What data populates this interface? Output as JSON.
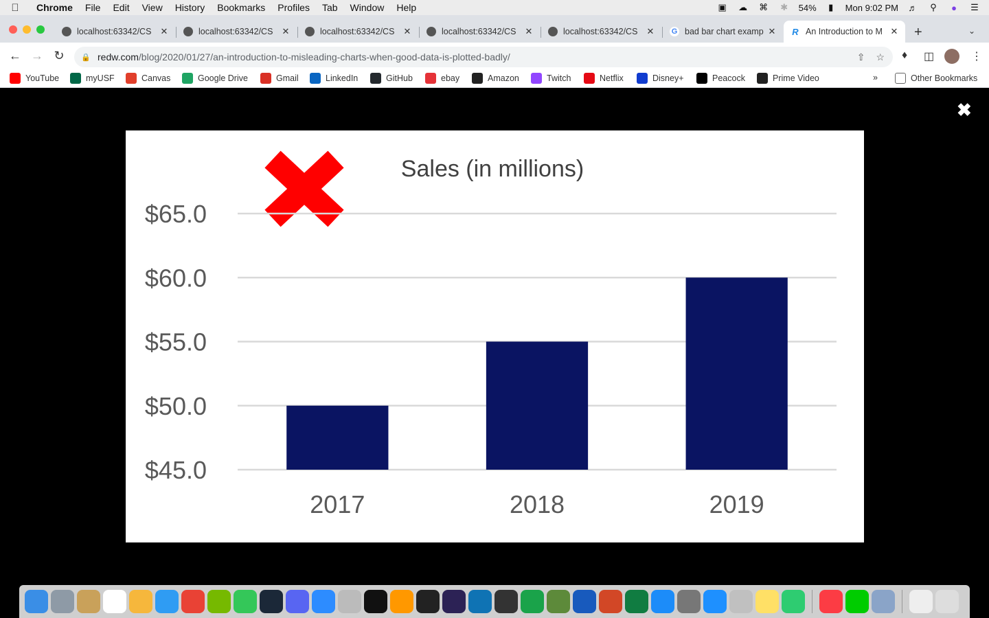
{
  "menubar": {
    "app": "Chrome",
    "items": [
      "File",
      "Edit",
      "View",
      "History",
      "Bookmarks",
      "Profiles",
      "Tab",
      "Window",
      "Help"
    ],
    "battery": "54%",
    "clock": "Mon 9:02 PM"
  },
  "tabs": [
    {
      "label": "localhost:63342/CS",
      "icon": "globe-icon"
    },
    {
      "label": "localhost:63342/CS",
      "icon": "globe-icon"
    },
    {
      "label": "localhost:63342/CS",
      "icon": "globe-icon"
    },
    {
      "label": "localhost:63342/CS",
      "icon": "globe-icon"
    },
    {
      "label": "localhost:63342/CS",
      "icon": "globe-icon"
    },
    {
      "label": "bad bar chart examp",
      "icon": "google-icon"
    },
    {
      "label": "An Introduction to M",
      "icon": "redw-icon",
      "active": true
    }
  ],
  "address": {
    "host": "redw.com",
    "path": "/blog/2020/01/27/an-introduction-to-misleading-charts-when-good-data-is-plotted-badly/"
  },
  "bookmarks": [
    {
      "label": "YouTube",
      "color": "#ff0000"
    },
    {
      "label": "myUSF",
      "color": "#006747"
    },
    {
      "label": "Canvas",
      "color": "#e13f2b"
    },
    {
      "label": "Google Drive",
      "color": "#1fa463"
    },
    {
      "label": "Gmail",
      "color": "#d93025"
    },
    {
      "label": "LinkedIn",
      "color": "#0a66c2"
    },
    {
      "label": "GitHub",
      "color": "#24292e"
    },
    {
      "label": "ebay",
      "color": "#e53238"
    },
    {
      "label": "Amazon",
      "color": "#222222"
    },
    {
      "label": "Twitch",
      "color": "#9146ff"
    },
    {
      "label": "Netflix",
      "color": "#e50914"
    },
    {
      "label": "Disney+",
      "color": "#113ccf"
    },
    {
      "label": "Peacock",
      "color": "#000000"
    },
    {
      "label": "Prime Video",
      "color": "#222222"
    }
  ],
  "bookmarks_more": "»",
  "other_bookmarks": "Other Bookmarks",
  "chart_data": {
    "type": "bar",
    "title": "Sales (in millions)",
    "categories": [
      "2017",
      "2018",
      "2019"
    ],
    "values": [
      50.0,
      55.0,
      60.0
    ],
    "ylim": [
      45,
      65
    ],
    "yticks": [
      65,
      60,
      55,
      50,
      45
    ],
    "ytick_labels": [
      "$65.0",
      "$60.0",
      "$55.0",
      "$50.0",
      "$45.0"
    ],
    "grid": true,
    "bar_color": "#0a1462",
    "annotation": "red-x-mark"
  },
  "colors": {
    "bar": "#0a1462",
    "x_mark": "#ff0000"
  }
}
